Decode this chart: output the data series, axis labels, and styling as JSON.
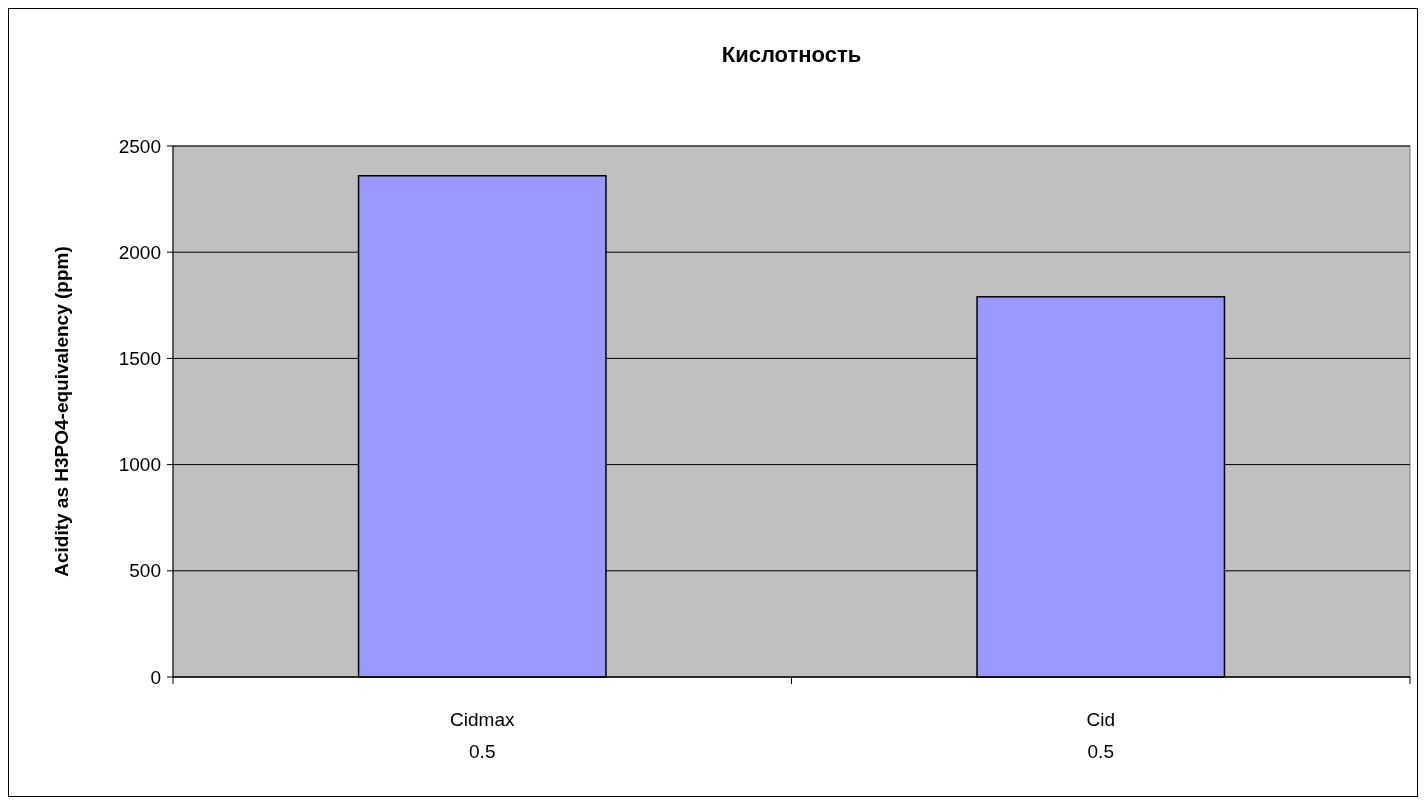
{
  "chart_data": {
    "type": "bar",
    "title": "Кислотность",
    "ylabel": "Acidity as H3PO4-equivalency (ppm)",
    "categories": [
      "Cidmax\n0.5",
      "Cid\n0.5"
    ],
    "values": [
      2360,
      1790
    ],
    "color": "#9999ff",
    "ylim": [
      0,
      2500
    ],
    "yticks": [
      0,
      500,
      1000,
      1500,
      2000,
      2500
    ],
    "grid": "y"
  }
}
